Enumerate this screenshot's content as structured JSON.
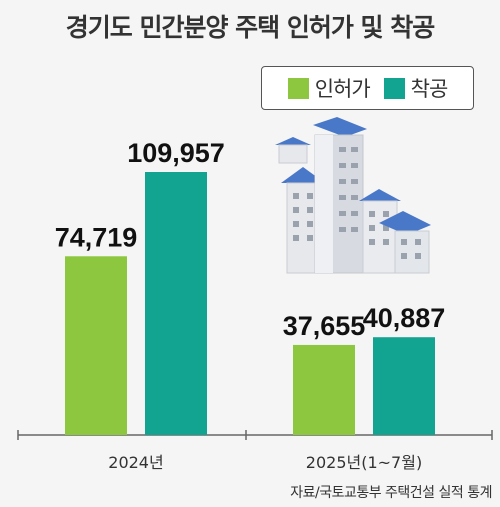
{
  "title": "경기도 민간분양 주택 인허가 및 착공",
  "source": "자료/국토교통부 주택건설 실적 통계",
  "colors": {
    "permit": "#8dc63f",
    "start": "#12a391"
  },
  "chart_data": {
    "type": "bar",
    "categories": [
      "2024년",
      "2025년(1~7월)"
    ],
    "series": [
      {
        "name": "인허가",
        "values": [
          74719,
          37655
        ],
        "labels": [
          "74,719",
          "37,655"
        ]
      },
      {
        "name": "착공",
        "values": [
          109957,
          40887
        ],
        "labels": [
          "109,957",
          "40,887"
        ]
      }
    ],
    "ylim": [
      0,
      120000
    ],
    "legend": "top-right",
    "grid": false,
    "xlabel": "",
    "ylabel": ""
  }
}
